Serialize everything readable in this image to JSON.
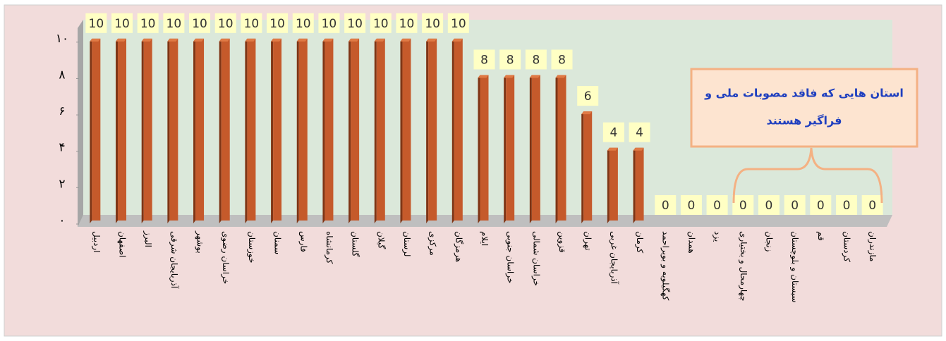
{
  "chart_data": {
    "type": "bar",
    "categories": [
      "اردبیل",
      "اصفهان",
      "البرز",
      "آذربایجان شرقی",
      "بوشهر",
      "خراسان رضوی",
      "خوزستان",
      "سمنان",
      "فارس",
      "کرمانشاه",
      "گلستان",
      "گیلان",
      "لرستان",
      "مرکزی",
      "هرمزگان",
      "ایلام",
      "خراسان جنوبی",
      "خراسان شمالی",
      "قزوین",
      "تهران",
      "آذربایجان غربی",
      "کرمان",
      "کهگیلویه و بویراحمد",
      "همدان",
      "یزد",
      "چهارمحال و بختیاری",
      "زنجان",
      "سیستان و بلوچستان",
      "قم",
      "کردستان",
      "مازندران"
    ],
    "values": [
      10,
      10,
      10,
      10,
      10,
      10,
      10,
      10,
      10,
      10,
      10,
      10,
      10,
      10,
      10,
      8,
      8,
      8,
      8,
      6,
      4,
      4,
      0,
      0,
      0,
      0,
      0,
      0,
      0,
      0,
      0
    ],
    "color": "#c55a2b",
    "ylim": [
      0,
      11
    ],
    "yticks": [
      {
        "value": 0,
        "label": "۰"
      },
      {
        "value": 2,
        "label": "۲"
      },
      {
        "value": 4,
        "label": "۴"
      },
      {
        "value": 6,
        "label": "۶"
      },
      {
        "value": 8,
        "label": "۸"
      },
      {
        "value": 10,
        "label": "۱۰"
      }
    ],
    "annotation": [
      "استان هایی که فاقد مصوبات ملی و",
      "فراگیر هستند"
    ]
  }
}
